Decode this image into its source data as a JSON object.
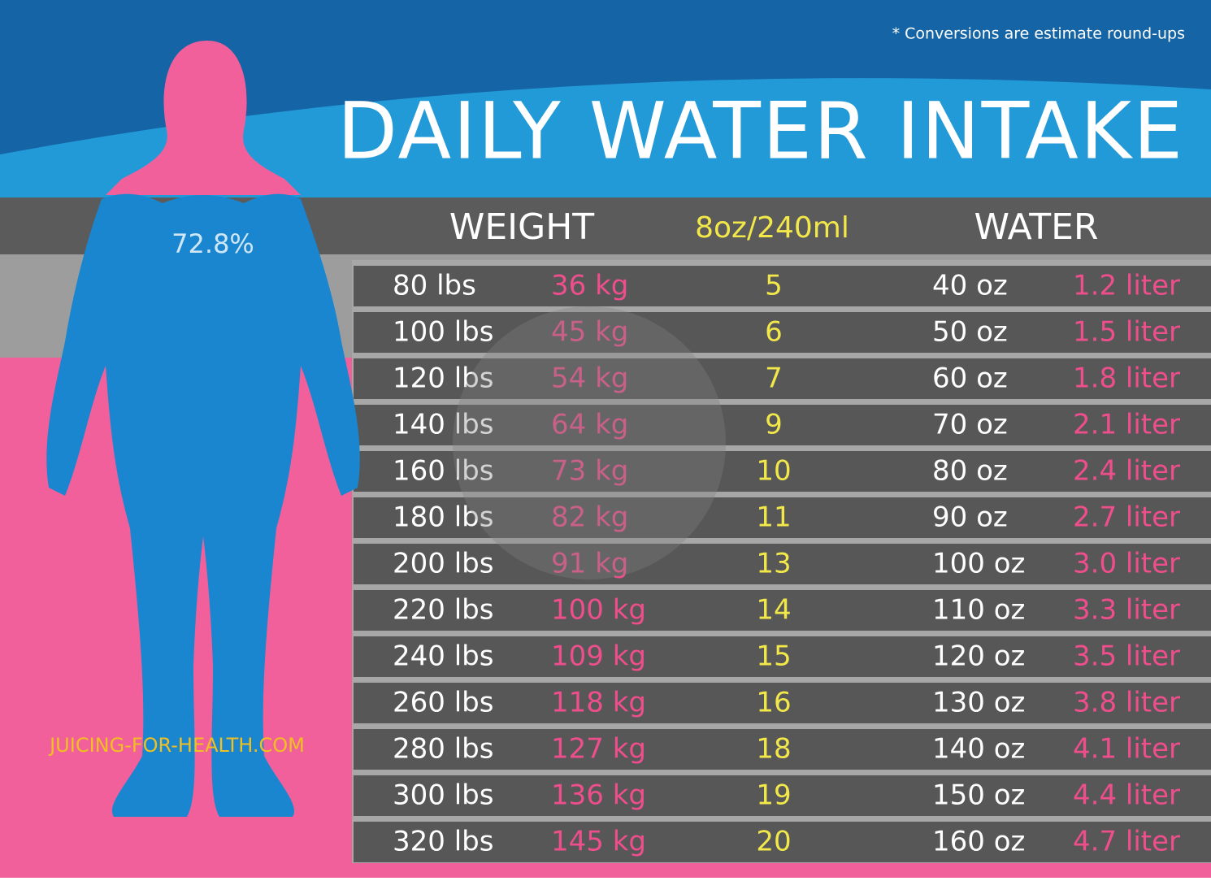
{
  "note": "* Conversions are estimate round-ups",
  "title": "DAILY WATER INTAKE",
  "percentage": "72.8%",
  "site": "JUICING-FOR-HEALTH.COM",
  "table": {
    "headers": [
      "WEIGHT",
      "8oz/240ml",
      "WATER"
    ],
    "rows": [
      [
        "80 lbs",
        "36 kg",
        "5",
        "40 oz",
        "1.2 liter"
      ],
      [
        "100 lbs",
        "45 kg",
        "6",
        "50 oz",
        "1.5 liter"
      ],
      [
        "120 lbs",
        "54 kg",
        "7",
        "60 oz",
        "1.8 liter"
      ],
      [
        "140 lbs",
        "64 kg",
        "9",
        "70 oz",
        "2.1 liter"
      ],
      [
        "160 lbs",
        "73 kg",
        "10",
        "80 oz",
        "2.4 liter"
      ],
      [
        "180 lbs",
        "82 kg",
        "11",
        "90 oz",
        "2.7 liter"
      ],
      [
        "200 lbs",
        "91 kg",
        "13",
        "100 oz",
        "3.0 liter"
      ],
      [
        "220 lbs",
        "100 kg",
        "14",
        "110 oz",
        "3.3 liter"
      ],
      [
        "240 lbs",
        "109 kg",
        "15",
        "120 oz",
        "3.5 liter"
      ],
      [
        "260 lbs",
        "118 kg",
        "16",
        "130 oz",
        "3.8 liter"
      ],
      [
        "280 lbs",
        "127 kg",
        "18",
        "140 oz",
        "4.1 liter"
      ],
      [
        "300 lbs",
        "136 kg",
        "19",
        "150 oz",
        "4.4 liter"
      ],
      [
        "320 lbs",
        "145 kg",
        "20",
        "160 oz",
        "4.7 liter"
      ]
    ]
  }
}
